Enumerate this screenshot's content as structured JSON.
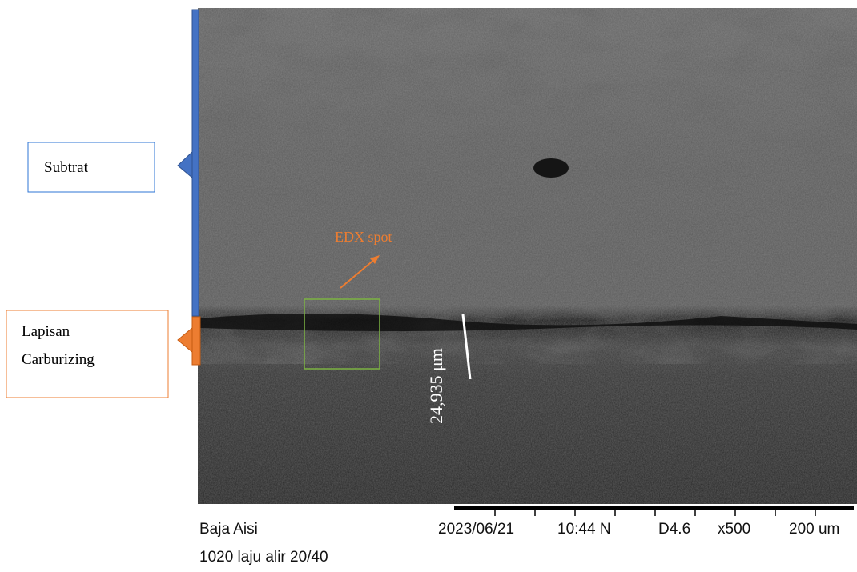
{
  "annotations": {
    "substrate_label": "Subtrat",
    "layer_label": [
      "Lapisan",
      "Carburizing"
    ],
    "edx_label": "EDX spot",
    "thickness_label": "24,935 μm"
  },
  "info_bar": {
    "sample": "Baja Aisi",
    "date": "2023/06/21",
    "time": "10:44 N",
    "detector": "D4.6",
    "magnification": "x500",
    "scale": "200 um",
    "description": "1020 laju alir 20/40"
  }
}
